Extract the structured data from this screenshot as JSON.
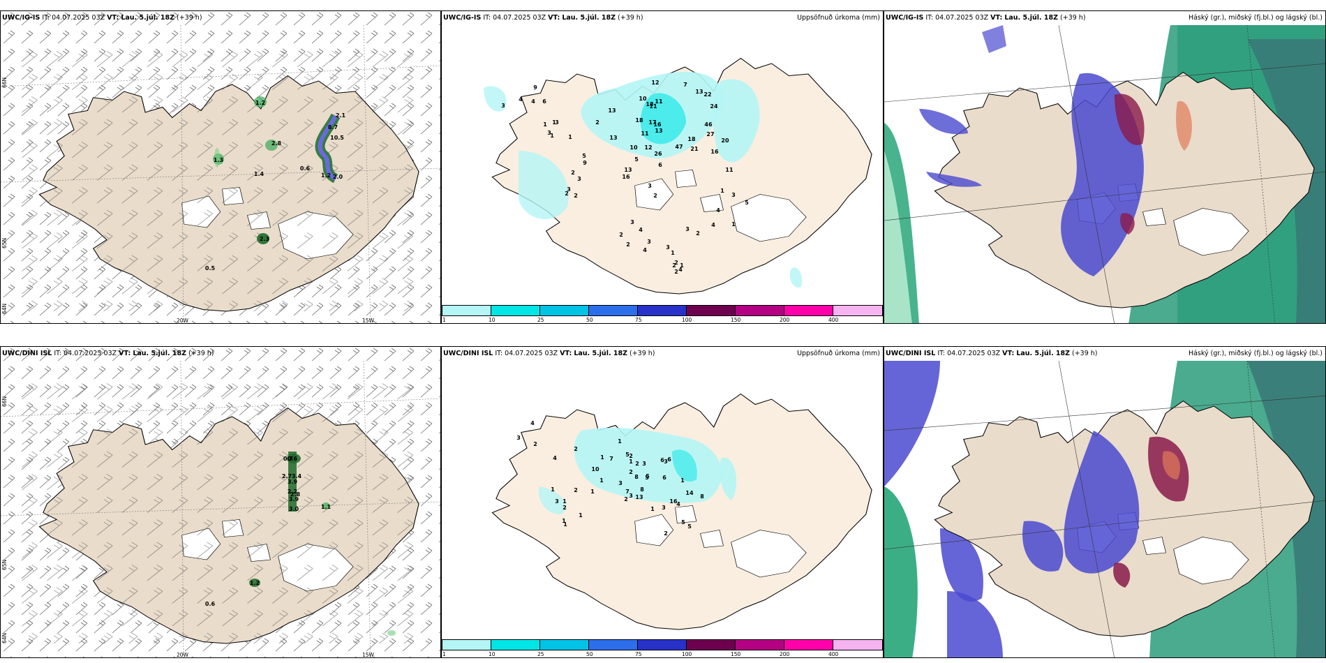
{
  "common": {
    "it_label": "IT:",
    "it_value": "04.07.2025 03Z",
    "vt_label": "VT:",
    "vt_value": "Lau. 5.júl. 18Z",
    "lead": "(+39 h)"
  },
  "rows": [
    {
      "model": "UWC/IG-IS",
      "wind": {
        "lat_labels": [
          "66N",
          "65N",
          "64N"
        ],
        "lon_labels": [
          "20W",
          "15W"
        ],
        "values": [
          "1.2",
          "2.8",
          "1.3",
          "1.4",
          "0.6",
          "1.2",
          "2.0",
          "2.1",
          "8.7",
          "10.5",
          "2.3",
          "0.5"
        ]
      },
      "precip": {
        "title": "Uppsöfnuð úrkoma (mm)",
        "values": [
          "9",
          "4",
          "4",
          "6",
          "3",
          "3",
          "13",
          "2",
          "1",
          "3",
          "1",
          "1",
          "1",
          "5",
          "13",
          "9",
          "2",
          "3",
          "3",
          "2",
          "2",
          "12",
          "10",
          "18",
          "11",
          "11",
          "16",
          "17",
          "13",
          "11",
          "18",
          "12",
          "26",
          "47",
          "5",
          "10",
          "13",
          "16",
          "6",
          "3",
          "2",
          "7",
          "13",
          "22",
          "24",
          "46",
          "18",
          "27",
          "20",
          "16",
          "21",
          "11",
          "3",
          "5",
          "4",
          "1",
          "1",
          "4",
          "3",
          "2",
          "3",
          "1",
          "2",
          "4",
          "2",
          "2",
          "1",
          "3",
          "4",
          "2",
          "2",
          "3",
          "4"
        ]
      },
      "cloud": {
        "title": "Háský (gr.), miðský (fj.bl.) og lágský (bl.)"
      }
    },
    {
      "model": "UWC/DINI ISL",
      "wind": {
        "lat_labels": [
          "66N",
          "65N",
          "64N"
        ],
        "lon_labels": [
          "20W",
          "15W"
        ],
        "values": [
          "0.6",
          "3.4",
          "3.9",
          "2.2",
          "3.9",
          "3.0",
          "1.1",
          "0.7",
          "2.7",
          "2.8",
          "1.2",
          "0.6"
        ]
      },
      "precip": {
        "title": "Uppsöfnuð úrkoma (mm)",
        "values": [
          "4",
          "3",
          "2",
          "2",
          "1",
          "4",
          "7",
          "1",
          "5",
          "2",
          "2",
          "10",
          "1",
          "1",
          "3",
          "5",
          "2",
          "3",
          "6",
          "5",
          "8",
          "6",
          "3",
          "6",
          "1",
          "14",
          "8",
          "7",
          "13",
          "16",
          "8",
          "4",
          "3",
          "1",
          "3",
          "2",
          "1",
          "1",
          "1",
          "3",
          "2",
          "1",
          "1",
          "1",
          "2",
          "5",
          "5",
          "2"
        ]
      },
      "cloud": {
        "title": "Háský (gr.), miðský (fj.bl.) og lágský (bl.)"
      }
    }
  ],
  "colorbar": {
    "ticks": [
      "1",
      "10",
      "25",
      "50",
      "75",
      "100",
      "150",
      "200",
      "400"
    ],
    "colors": [
      "#b4f5f5",
      "#00e6e6",
      "#00c3e6",
      "#2d6eeb",
      "#2832c8",
      "#6e0050",
      "#b40082",
      "#ff00aa",
      "#f5b4f0"
    ]
  }
}
